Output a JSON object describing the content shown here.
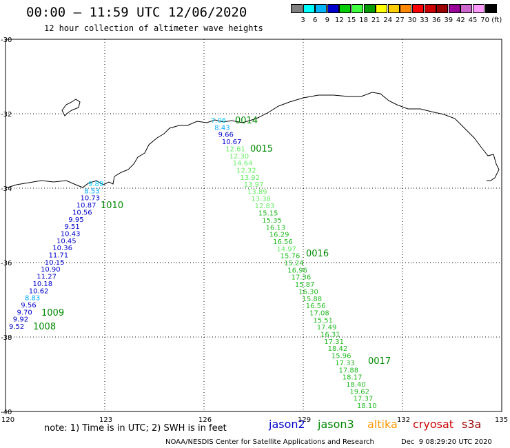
{
  "header": {
    "title": "00:00 – 11:59 UTC 12/06/2020",
    "subtitle": "12 hour collection of altimeter wave heights"
  },
  "legend": {
    "colors": [
      "#808080",
      "#00ffff",
      "#00b4ff",
      "#0000cc",
      "#00cc00",
      "#40ff40",
      "#009900",
      "#ffff00",
      "#ffcc00",
      "#ff8800",
      "#ff0000",
      "#cc0000",
      "#990000",
      "#990099",
      "#cc66cc",
      "#ff99ff",
      "#000000"
    ],
    "labels": [
      "3",
      "6",
      "9",
      "12",
      "15",
      "18",
      "21",
      "24",
      "27",
      "30",
      "33",
      "36",
      "39",
      "42",
      "45",
      "70"
    ],
    "unit": "(ft)"
  },
  "axes": {
    "lat_ticks": [
      "-30",
      "-32",
      "-34",
      "-36",
      "-38",
      "-40"
    ],
    "lon_ticks": [
      "120",
      "123",
      "126",
      "129",
      "132",
      "135"
    ]
  },
  "passes": [
    {
      "label": "0014",
      "color": "#008800"
    },
    {
      "label": "0015",
      "color": "#008800"
    },
    {
      "label": "0016",
      "color": "#008800"
    },
    {
      "label": "0017",
      "color": "#008800"
    },
    {
      "label": "1010",
      "color": "#008800"
    },
    {
      "label": "1009",
      "color": "#008800"
    },
    {
      "label": "1008",
      "color": "#008800"
    }
  ],
  "track_east": {
    "values": [
      "7.06",
      "8.43",
      "9.66",
      "10.67",
      "12.61",
      "12.30",
      "14.64",
      "12.32",
      "13.92",
      "13.97",
      "13.89",
      "13.38",
      "12.83",
      "15.15",
      "15.35",
      "16.13",
      "16.29",
      "16.56",
      "14.97",
      "15.76",
      "15.24",
      "16.96",
      "17.36",
      "15.87",
      "16.30",
      "15.88",
      "16.56",
      "17.08",
      "15.51",
      "17.49",
      "16.31",
      "17.31",
      "18.42",
      "15.96",
      "17.33",
      "17.88",
      "18.17",
      "18.40",
      "19.62",
      "17.37",
      "18.10"
    ],
    "colors": [
      "#00ccff",
      "#00aaff",
      "#0000cc",
      "#0000cc",
      "#66ee66",
      "#66ee66",
      "#66ee66",
      "#66ee66",
      "#66ee66",
      "#66ee66",
      "#66ee66",
      "#66ee66",
      "#66ee66",
      "#22bb22",
      "#22bb22",
      "#22bb22",
      "#22bb22",
      "#22bb22",
      "#66ee66",
      "#22bb22",
      "#22bb22",
      "#22bb22",
      "#22bb22",
      "#22bb22",
      "#22bb22",
      "#22bb22",
      "#22bb22",
      "#22bb22",
      "#22bb22",
      "#22bb22",
      "#22bb22",
      "#22bb22",
      "#22bb22",
      "#22bb22",
      "#22bb22",
      "#22bb22",
      "#22bb22",
      "#22bb22",
      "#22bb22",
      "#22bb22",
      "#22bb22"
    ]
  },
  "track_west": {
    "values": [
      "9.89",
      "8.53",
      "10.73",
      "10.87",
      "10.56",
      "9.95",
      "9.51",
      "10.43",
      "10.45",
      "10.36",
      "11.71",
      "10.15",
      "10.90",
      "11.27",
      "10.18",
      "10.62",
      "8.83",
      "9.56",
      "9.70",
      "9.92",
      "9.52"
    ],
    "colors": [
      "#00ccff",
      "#00aaff",
      "#0000cc",
      "#0000cc",
      "#0000cc",
      "#0000cc",
      "#0000cc",
      "#0000cc",
      "#0000cc",
      "#0000cc",
      "#0000cc",
      "#0000cc",
      "#0000cc",
      "#0000cc",
      "#0000cc",
      "#0000cc",
      "#00aaff",
      "#0000cc",
      "#0000cc",
      "#0000cc",
      "#0000cc"
    ]
  },
  "footer": {
    "note": "note: 1) Time is in UTC; 2) SWH is in feet",
    "missions": [
      {
        "name": "jason2",
        "color": "#0000cc"
      },
      {
        "name": "jason3",
        "color": "#008800"
      },
      {
        "name": "altika",
        "color": "#ff9900"
      },
      {
        "name": "cryosat",
        "color": "#cc0000"
      },
      {
        "name": "s3a",
        "color": "#990000"
      }
    ],
    "credit": "NOAA/NESDIS Center for Satellite Applications and Research",
    "timestamp": "Dec  9 08:29:20 UTC 2020"
  }
}
